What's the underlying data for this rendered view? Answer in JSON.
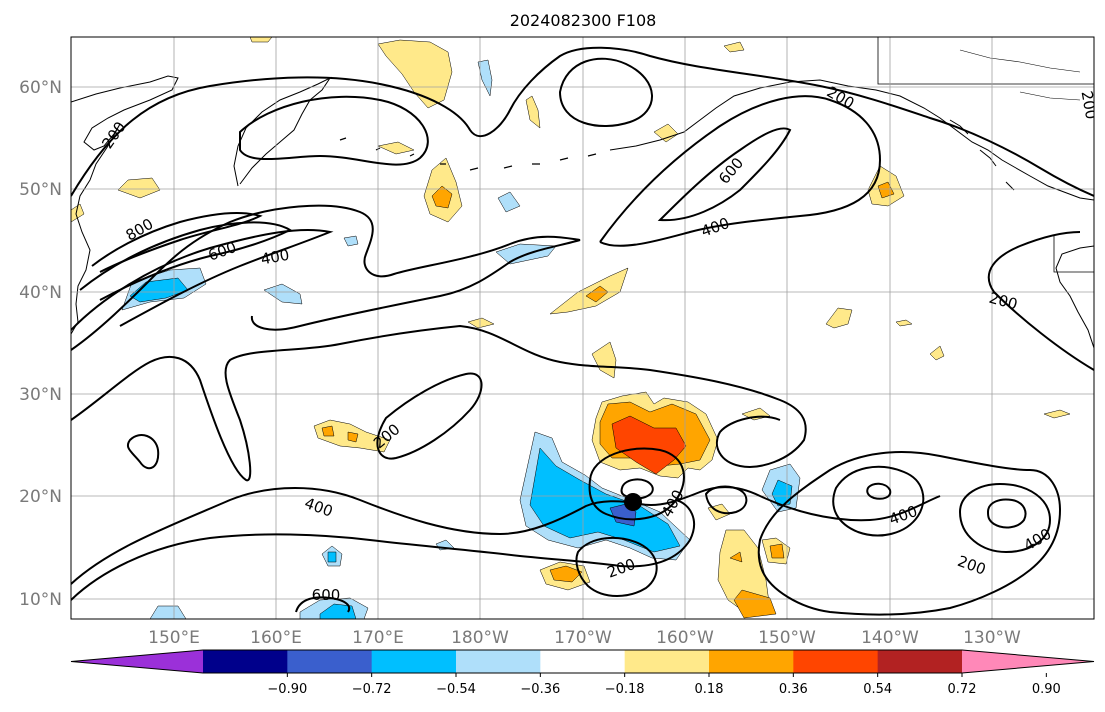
{
  "title": "2024082300 F108",
  "lat_labels": [
    "60°N",
    "50°N",
    "40°N",
    "30°N",
    "20°N",
    "10°N"
  ],
  "lon_labels": [
    "150°E",
    "160°E",
    "170°E",
    "180°W",
    "170°W",
    "160°W",
    "150°W",
    "140°W",
    "130°W"
  ],
  "contour_labels": [
    "200",
    "800",
    "600",
    "400",
    "600",
    "400",
    "200",
    "200",
    "200",
    "400",
    "200",
    "200",
    "400",
    "400",
    "600",
    "200",
    "400"
  ],
  "colorbar": {
    "tick_labels": [
      "−0.90",
      "−0.72",
      "−0.54",
      "−0.36",
      "−0.18",
      "0.18",
      "0.36",
      "0.54",
      "0.72",
      "0.90"
    ],
    "colors": [
      "#9b30d9",
      "#00008b",
      "#3a5fcd",
      "#00bfff",
      "#afdffa",
      "#ffffff",
      "#ffe98a",
      "#ffa500",
      "#ff4500",
      "#b22222",
      "#ff88b8"
    ]
  },
  "colors": {
    "contour": "#000000",
    "coast": "#000000",
    "grid": "#a0a0a0",
    "storm_marker": "#000000"
  }
}
